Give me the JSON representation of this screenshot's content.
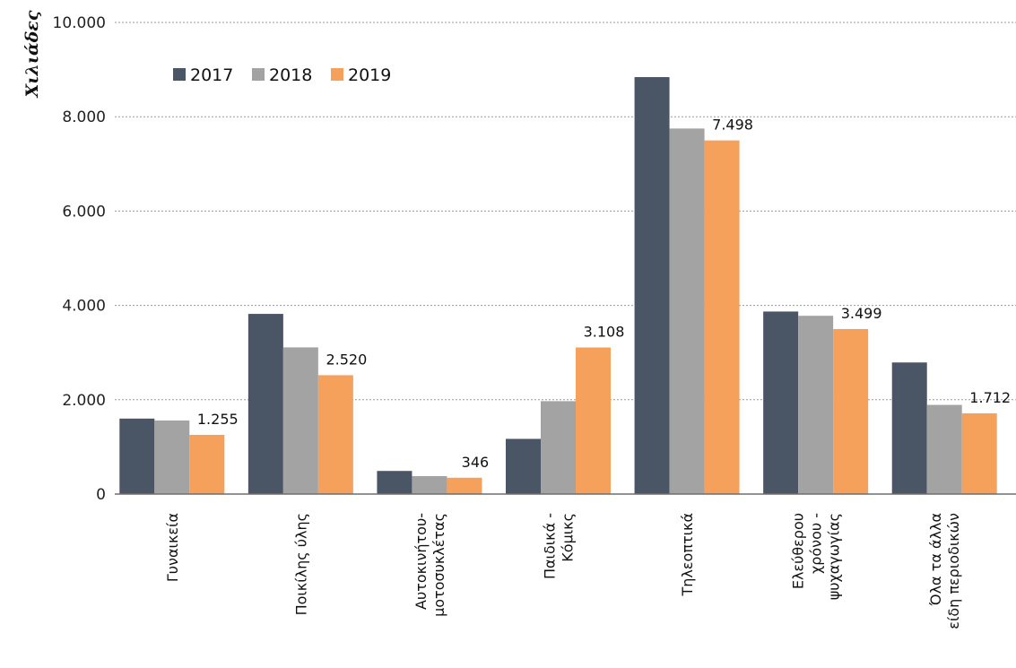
{
  "chart_data": {
    "type": "bar",
    "title": "",
    "xlabel": "",
    "ylabel": "Χιλιάδες",
    "ylim": [
      0,
      10000
    ],
    "yticks": [
      0,
      2000,
      4000,
      6000,
      8000,
      10000
    ],
    "ytick_labels": [
      "0",
      "2.000",
      "4.000",
      "6.000",
      "8.000",
      "10.000"
    ],
    "grid": true,
    "legend_position": "top-left",
    "categories": [
      [
        "Γυναικεία"
      ],
      [
        "Ποικίλης ύλης"
      ],
      [
        "Αυτοκινήτου-",
        "μοτοσυκλέτας"
      ],
      [
        "Παιδικά -",
        "Κόμικς"
      ],
      [
        "Τηλεοπτικά"
      ],
      [
        "Ελεύθερου",
        "χρόνου -",
        "ψυχαγωγίας"
      ],
      [
        "Όλα τα άλλα",
        "είδη περιοδικών"
      ]
    ],
    "series": [
      {
        "name": "2017",
        "color": "#4a5566",
        "values": [
          1600,
          3820,
          490,
          1170,
          8840,
          3870,
          2790
        ]
      },
      {
        "name": "2018",
        "color": "#a3a3a3",
        "values": [
          1560,
          3110,
          380,
          1970,
          7750,
          3780,
          1890
        ]
      },
      {
        "name": "2019",
        "color": "#f5a05b",
        "values": [
          1255,
          2520,
          346,
          3108,
          7498,
          3499,
          1712
        ]
      }
    ],
    "data_labels": {
      "series_index": 2,
      "labels": [
        "1.255",
        "2.520",
        "346",
        "3.108",
        "7.498",
        "3.499",
        "1.712"
      ]
    }
  }
}
